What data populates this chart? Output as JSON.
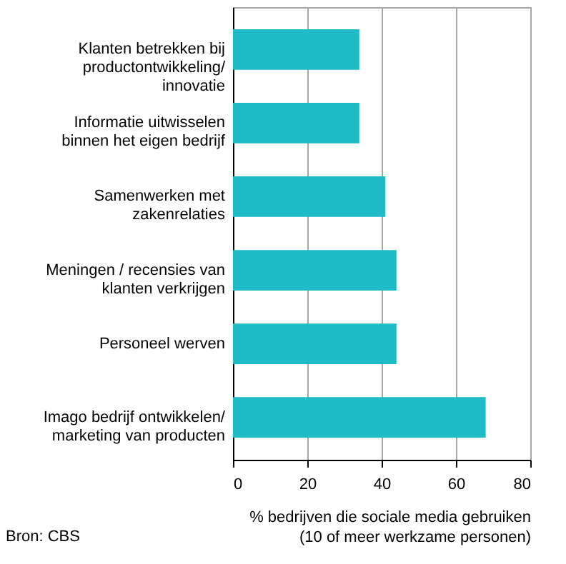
{
  "chart_data": {
    "type": "bar",
    "orientation": "horizontal",
    "categories": [
      "Klanten betrekken bij\nproductontwikkeling/\ninnovatie",
      "Informatie uitwisselen\nbinnen het eigen bedrijf",
      "Samenwerken met\nzakenrelaties",
      "Meningen / recensies van\nklanten verkrijgen",
      "Personeel werven",
      "Imago bedrijf ontwikkelen/\nmarketing van producten"
    ],
    "values": [
      34,
      34,
      41,
      44,
      44,
      68
    ],
    "color": "#1fbbc6",
    "xlim": [
      0,
      80
    ],
    "xticks": [
      0,
      20,
      40,
      60,
      80
    ],
    "xlabel": "% bedrijven die sociale media gebruiken\n(10 of meer werkzame personen)",
    "grid": "x",
    "annotations": [
      "Bron: CBS"
    ]
  }
}
